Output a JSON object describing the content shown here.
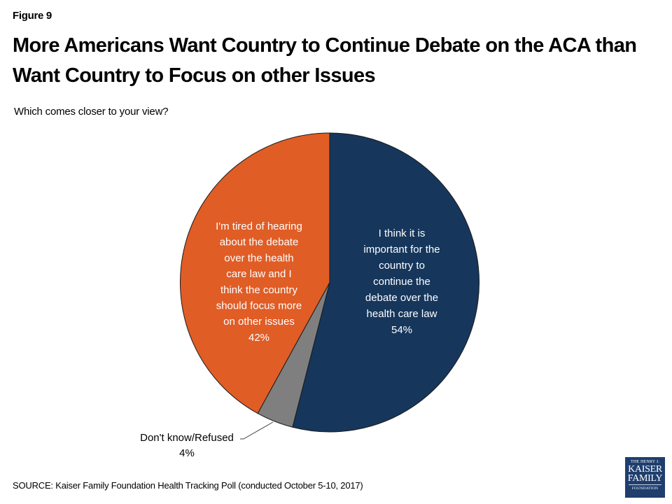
{
  "figure_label": "Figure 9",
  "title": "More Americans Want Country to Continue Debate on the ACA than Want Country to Focus on other Issues",
  "subtitle": "Which comes closer to your view?",
  "source": "SOURCE: Kaiser Family Foundation Health Tracking Poll (conducted October 5-10, 2017)",
  "logo": {
    "line1": "THE HENRY J.",
    "line2": "KAISER",
    "line3": "FAMILY",
    "line4": "FOUNDATION"
  },
  "chart_data": {
    "type": "pie",
    "title": "More Americans Want Country to Continue Debate on the ACA than Want Country to Focus on other Issues",
    "subtitle": "Which comes closer to your view?",
    "start_angle_deg": 0,
    "direction": "clockwise",
    "slices": [
      {
        "name": "continue-debate",
        "label_lines": [
          "I think it is",
          "important for the",
          "country to",
          "continue the",
          "debate over the",
          "health care law"
        ],
        "value": 54,
        "value_label": "54%",
        "color": "#16365C",
        "label_color": "#FFFFFF",
        "label_position": "inside"
      },
      {
        "name": "dont-know",
        "label_lines": [
          "Don't know/Refused"
        ],
        "value": 4,
        "value_label": "4%",
        "color": "#7F7F7F",
        "label_color": "#000000",
        "label_position": "outside-bottom-left"
      },
      {
        "name": "focus-other-issues",
        "label_lines": [
          "I'm tired of hearing",
          "about the debate",
          "over the health",
          "care law and I",
          "think the country",
          "should focus more",
          "on other issues"
        ],
        "value": 42,
        "value_label": "42%",
        "color": "#E05D26",
        "label_color": "#FFFFFF",
        "label_position": "inside"
      }
    ]
  }
}
